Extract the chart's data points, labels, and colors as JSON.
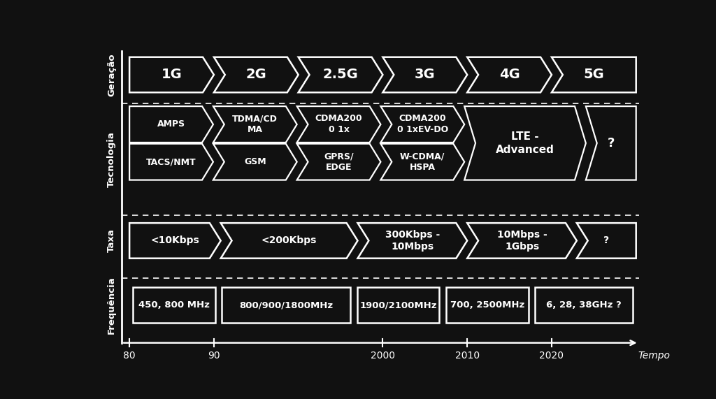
{
  "bg_color": "#111111",
  "fg_color": "#ffffff",
  "title_x": "Tempo",
  "generation_labels": [
    "1G",
    "2G",
    "2.5G",
    "3G",
    "4G",
    "5G"
  ],
  "generation_row_label": "Geração",
  "tech_row_label": "Tecnologia",
  "tech_top_labels": [
    "AMPS",
    "TDMA/CD\nMA",
    "CDMA200\n0 1x",
    "CDMA200\n0 1xEV-DO"
  ],
  "tech_bot_labels": [
    "TACS/NMT",
    "GSM",
    "GPRS/\nEDGE",
    "W-CDMA/\nHSPA"
  ],
  "tech_big_label": "LTE -\nAdvanced",
  "tech_last_label": "?",
  "rate_row_label": "Taxa",
  "rate_labels": [
    "<10Kbps",
    "<200Kbps",
    "300Kbps -\n10Mbps",
    "10Mbps -\n1Gbps",
    "?"
  ],
  "freq_row_label": "Frequência",
  "freq_labels": [
    "450, 800 MHz",
    "800/900/1800MHz",
    "1900/2100MHz",
    "700, 2500MHz",
    "6, 28, 38GHz ?"
  ],
  "axis_ticks": [
    "80",
    "90",
    "2000",
    "2010",
    "2020"
  ]
}
